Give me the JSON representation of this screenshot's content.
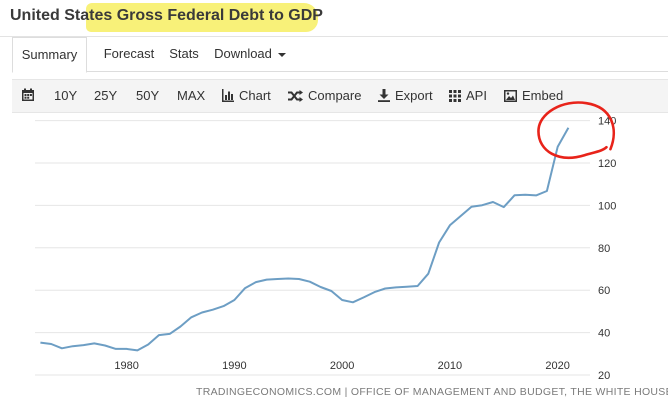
{
  "page": {
    "title": "United States Gross Federal Debt to GDP"
  },
  "tabs": [
    {
      "label": "Summary",
      "active": true
    },
    {
      "label": "Forecast"
    },
    {
      "label": "Stats"
    },
    {
      "label": "Download"
    }
  ],
  "toolbar": {
    "range_options": [
      "10Y",
      "25Y",
      "50Y",
      "MAX"
    ],
    "chart_label": "Chart",
    "compare_label": "Compare",
    "export_label": "Export",
    "api_label": "API",
    "embed_label": "Embed"
  },
  "colors": {
    "line": "#6d9ec4",
    "highlight": "#f7f06a",
    "annotation": "#e8231a",
    "grid": "#e6e6e6"
  },
  "source": "TRADINGECONOMICS.COM | OFFICE OF MANAGEMENT AND BUDGET, THE WHITE HOUSE",
  "chart_data": {
    "type": "line",
    "title": "",
    "xlabel": "",
    "ylabel": "",
    "xlim": [
      1971.5,
      2023
    ],
    "ylim": [
      20,
      145
    ],
    "x_ticks": [
      1980,
      1990,
      2000,
      2010,
      2020
    ],
    "y_ticks": [
      20,
      40,
      60,
      80,
      100,
      120,
      140
    ],
    "grid": true,
    "series": [
      {
        "x": [
          1972,
          1973,
          1974,
          1975,
          1976,
          1977,
          1978,
          1979,
          1980,
          1981,
          1982,
          1983,
          1984,
          1985,
          1986,
          1987,
          1988,
          1989,
          1990,
          1991,
          1992,
          1993,
          1994,
          1995,
          1996,
          1997,
          1998,
          1999,
          2000,
          2001,
          2002,
          2003,
          2004,
          2005,
          2006,
          2007,
          2008,
          2009,
          2010,
          2011,
          2012,
          2013,
          2014,
          2015,
          2016,
          2017,
          2018,
          2019,
          2020,
          2021
        ],
        "values": [
          35.3,
          34.6,
          32.6,
          33.6,
          34.1,
          34.9,
          33.9,
          32.3,
          32.3,
          31.6,
          34.4,
          38.8,
          39.4,
          42.9,
          47.2,
          49.5,
          50.8,
          52.5,
          55.4,
          61.0,
          63.8,
          65.0,
          65.3,
          65.5,
          65.3,
          64.0,
          61.5,
          59.6,
          55.4,
          54.3,
          56.6,
          59.1,
          60.8,
          61.3,
          61.6,
          62.0,
          67.8,
          82.5,
          90.6,
          95.0,
          99.4,
          100.1,
          101.6,
          99.2,
          104.8,
          105.0,
          104.7,
          106.8,
          127.7,
          136.6
        ]
      }
    ],
    "annotations": [
      {
        "type": "circle",
        "label": ""
      }
    ]
  }
}
